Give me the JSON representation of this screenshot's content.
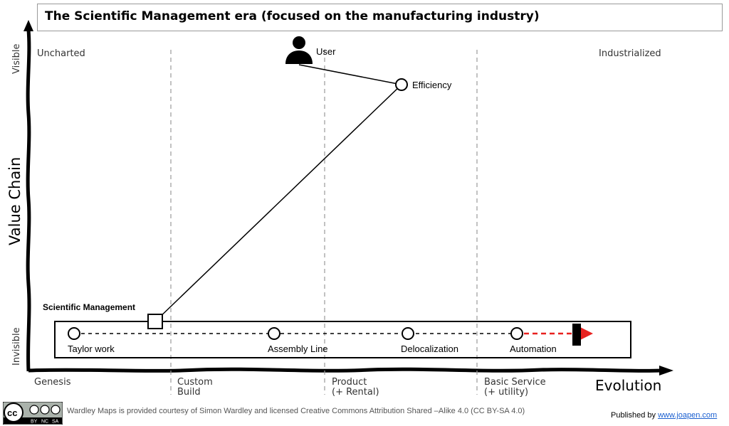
{
  "title": "The Scientific Management era (focused on the manufacturing industry)",
  "axes": {
    "y_label": "Value Chain",
    "y_top": "Visible",
    "y_bottom": "Invisible",
    "x_label": "Evolution",
    "top_left": "Uncharted",
    "top_right": "Industrialized",
    "stages": [
      "Genesis",
      "Custom",
      "Build",
      "Product",
      "(+ Rental)",
      "Basic Service",
      "(+ utility)"
    ]
  },
  "components": {
    "user": "User",
    "efficiency": "Efficiency",
    "scientific_management": "Scientific Management",
    "taylor_work": "Taylor work",
    "assembly_line": "Assembly Line",
    "delocalization": "Delocalization",
    "automation": "Automation"
  },
  "colors": {
    "inertia_arrow": "#e8211f",
    "link": "#1a5fd0"
  },
  "footer": {
    "credit": "Wardley Maps is provided courtesy of Simon Wardley and licensed  Creative Commons Attribution Shared –Alike 4.0 (CC BY-SA 4.0)",
    "published_prefix": "Published by",
    "published_link": "www.joapen.com",
    "cc_main": "cc",
    "cc_by": "BY",
    "cc_nc": "NC",
    "cc_sa": "SA"
  }
}
